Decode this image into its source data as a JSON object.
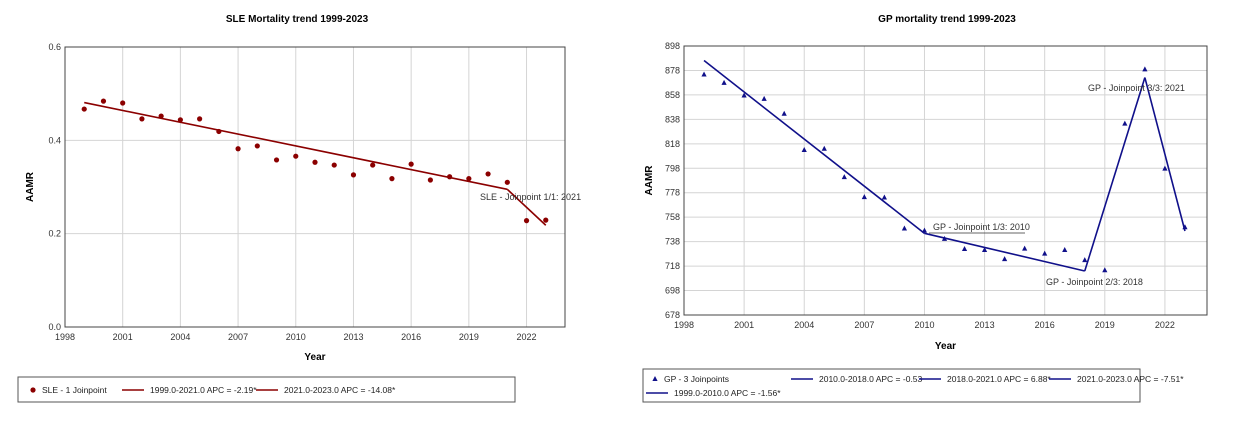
{
  "chart_data": [
    {
      "type": "line",
      "title": "SLE Mortality trend 1999-2023",
      "xlabel": "Year",
      "ylabel": "AAMR",
      "xlim": [
        1998,
        2024
      ],
      "ylim": [
        0.0,
        0.6
      ],
      "xticks": [
        1998,
        2001,
        2004,
        2007,
        2010,
        2013,
        2016,
        2019,
        2022
      ],
      "yticks": [
        "0.0",
        "0.2",
        "0.4",
        "0.6"
      ],
      "grid": true,
      "color": "#8b0000",
      "marker": "circle",
      "observed": {
        "name": "SLE - 1 Joinpoint",
        "x": [
          1999,
          2000,
          2001,
          2002,
          2003,
          2004,
          2005,
          2006,
          2007,
          2008,
          2009,
          2010,
          2011,
          2012,
          2013,
          2014,
          2015,
          2016,
          2017,
          2018,
          2019,
          2020,
          2021,
          2022,
          2023
        ],
        "y": [
          0.467,
          0.484,
          0.48,
          0.446,
          0.452,
          0.444,
          0.446,
          0.419,
          0.382,
          0.388,
          0.358,
          0.366,
          0.353,
          0.347,
          0.326,
          0.347,
          0.318,
          0.349,
          0.315,
          0.322,
          0.318,
          0.328,
          0.31,
          0.228,
          0.229
        ]
      },
      "segments": [
        {
          "name": "1999.0-2021.0 APC  =  -2.19*",
          "x": [
            1999,
            2021
          ],
          "y": [
            0.481,
            0.295
          ]
        },
        {
          "name": "2021.0-2023.0 APC  =  -14.08*",
          "x": [
            2021,
            2023
          ],
          "y": [
            0.295,
            0.218
          ]
        }
      ],
      "annotations": [
        {
          "text": "SLE - Joinpoint 1/1:  2021",
          "x": 2021,
          "y": 0.295,
          "underline": false
        }
      ],
      "legend": [
        "SLE - 1 Joinpoint",
        "1999.0-2021.0 APC  =  -2.19*",
        "2021.0-2023.0 APC  =  -14.08*"
      ],
      "legend_position": "bottom"
    },
    {
      "type": "line",
      "title": "GP mortality trend 1999-2023",
      "xlabel": "Year",
      "ylabel": "AAMR",
      "xlim": [
        1998,
        2024.1
      ],
      "ylim": [
        678,
        898
      ],
      "xticks": [
        1998,
        2001,
        2004,
        2007,
        2010,
        2013,
        2016,
        2019,
        2022
      ],
      "yticks": [
        "678",
        "698",
        "718",
        "738",
        "758",
        "778",
        "798",
        "818",
        "838",
        "858",
        "878",
        "898"
      ],
      "grid": true,
      "color": "#10108a",
      "marker": "triangle",
      "observed": {
        "name": "GP - 3 Joinpoints",
        "x": [
          1999,
          2000,
          2001,
          2002,
          2003,
          2004,
          2005,
          2006,
          2007,
          2008,
          2009,
          2010,
          2011,
          2012,
          2013,
          2014,
          2015,
          2016,
          2017,
          2018,
          2019,
          2020,
          2021,
          2022,
          2023
        ],
        "y": [
          874.7,
          867.8,
          857.5,
          854.8,
          842.6,
          812.9,
          814.0,
          790.8,
          774.4,
          774.1,
          748.7,
          747.0,
          740.3,
          732.0,
          731.2,
          723.7,
          732.3,
          728.2,
          731.2,
          722.9,
          714.6,
          834.5,
          878.9,
          797.7,
          749.8
        ]
      },
      "segments": [
        {
          "name": "1999.0-2010.0 APC  =  -1.56*",
          "x": [
            1999,
            2010
          ],
          "y": [
            886.1,
            744.8
          ]
        },
        {
          "name": "2010.0-2018.0 APC  =  -0.53",
          "x": [
            2010,
            2018
          ],
          "y": [
            744.8,
            714.0
          ]
        },
        {
          "name": "2018.0-2021.0 APC  =  6.88*",
          "x": [
            2018,
            2021
          ],
          "y": [
            714.0,
            872.2
          ]
        },
        {
          "name": "2021.0-2023.0 APC  =  -7.51*",
          "x": [
            2021,
            2023
          ],
          "y": [
            872.2,
            746.7
          ]
        }
      ],
      "annotations": [
        {
          "text": "GP - Joinpoint 1/3:  2010",
          "x": 2010,
          "y": 744.8,
          "underline": true
        },
        {
          "text": "GP - Joinpoint 2/3:  2018",
          "x": 2018,
          "y": 714.0,
          "underline": false
        },
        {
          "text": "GP - Joinpoint 3/3:  2021",
          "x": 2021,
          "y": 872.2,
          "underline": false
        }
      ],
      "legend": [
        "GP - 3 Joinpoints",
        "2010.0-2018.0 APC  =  -0.53",
        "2018.0-2021.0 APC  =  6.88*",
        "2021.0-2023.0 APC  =  -7.51*",
        "1999.0-2010.0 APC  =  -1.56*"
      ],
      "legend_position": "bottom"
    }
  ]
}
